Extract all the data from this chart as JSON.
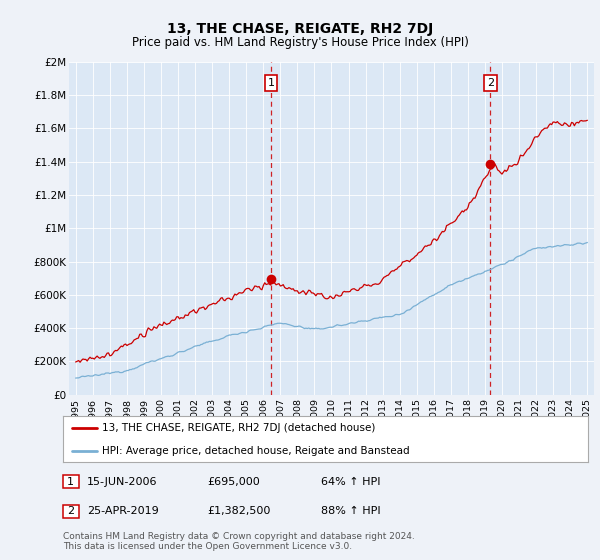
{
  "title": "13, THE CHASE, REIGATE, RH2 7DJ",
  "subtitle": "Price paid vs. HM Land Registry's House Price Index (HPI)",
  "ylim": [
    0,
    2000000
  ],
  "yticks": [
    0,
    200000,
    400000,
    600000,
    800000,
    1000000,
    1200000,
    1400000,
    1600000,
    1800000,
    2000000
  ],
  "ytick_labels": [
    "£0",
    "£200K",
    "£400K",
    "£600K",
    "£800K",
    "£1M",
    "£1.2M",
    "£1.4M",
    "£1.6M",
    "£1.8M",
    "£2M"
  ],
  "hpi_color": "#7ab0d4",
  "price_color": "#cc0000",
  "vline_color": "#cc0000",
  "sale1_year": 2006.46,
  "sale1_price": 695000,
  "sale1_label": "1",
  "sale2_year": 2019.32,
  "sale2_price": 1382500,
  "sale2_label": "2",
  "legend_line1": "13, THE CHASE, REIGATE, RH2 7DJ (detached house)",
  "legend_line2": "HPI: Average price, detached house, Reigate and Banstead",
  "table_row1": [
    "1",
    "15-JUN-2006",
    "£695,000",
    "64% ↑ HPI"
  ],
  "table_row2": [
    "2",
    "25-APR-2019",
    "£1,382,500",
    "88% ↑ HPI"
  ],
  "footnote": "Contains HM Land Registry data © Crown copyright and database right 2024.\nThis data is licensed under the Open Government Licence v3.0.",
  "bg_color": "#eef2f8",
  "plot_bg_color": "#dce8f5",
  "grid_color": "#ffffff",
  "title_fontsize": 10,
  "subtitle_fontsize": 8.5
}
